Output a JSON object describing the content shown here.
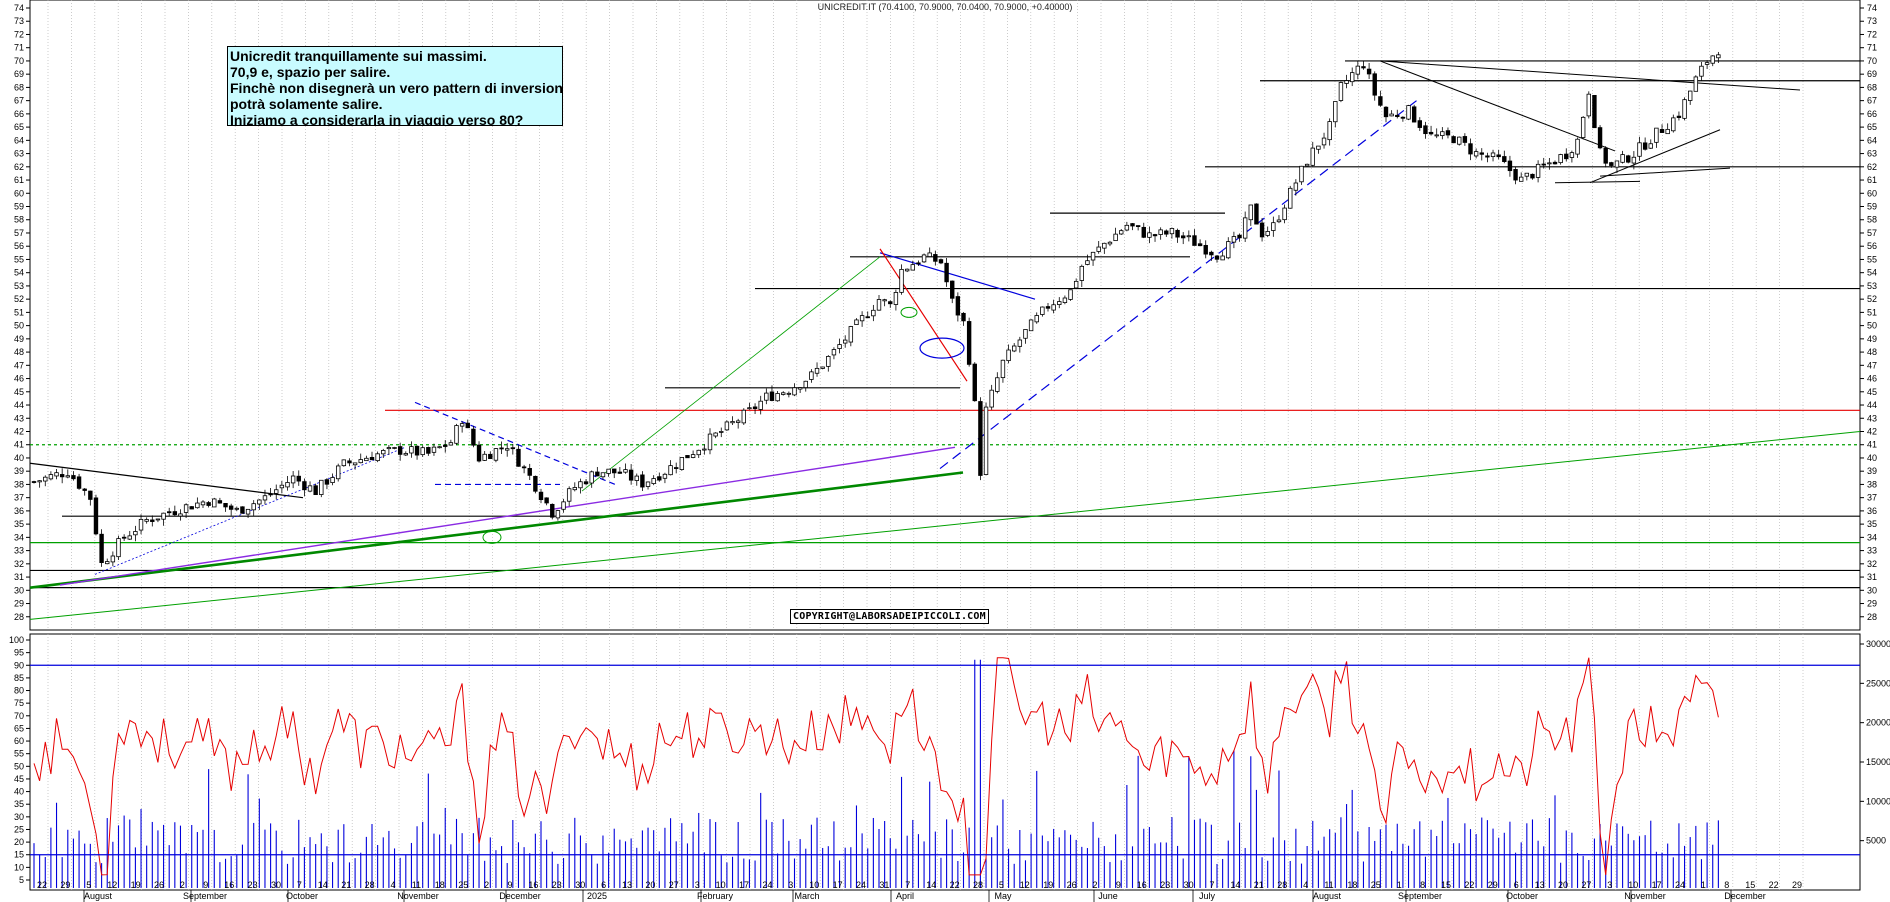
{
  "header": {
    "title": "UNICREDIT.IT (70.4100, 70.9000, 70.0400, 70.9000, +0.40000)"
  },
  "annotation": {
    "lines": [
      "Unicredit tranquillamente sui massimi.",
      "70,9 e, spazio per salire.",
      "Finchè non disegnerà un vero pattern di inversione",
      "potrà solamente salire.",
      "Iniziamo a considerarla in viaggio verso 80?"
    ]
  },
  "copyright": "COPYRIGHT@LABORSADEIPICCOLI.COM",
  "colors": {
    "candle": "#000000",
    "red_line": "#e60000",
    "green_line": "#00a000",
    "dark_green_line": "#008800",
    "blue_dashed": "#0000dd",
    "purple_line": "#8a2be2",
    "rsi_line": "#e60000",
    "volume_bar": "#0000dd",
    "rsi_band": "#0000dd"
  },
  "chart_data": [
    {
      "type": "candlestick",
      "title": "UNICREDIT.IT",
      "ylim": [
        27,
        74
      ],
      "y_ticks": [
        28,
        29,
        30,
        31,
        32,
        33,
        34,
        35,
        36,
        37,
        38,
        39,
        40,
        41,
        42,
        43,
        44,
        45,
        46,
        47,
        48,
        49,
        50,
        51,
        52,
        53,
        54,
        55,
        56,
        57,
        58,
        59,
        60,
        61,
        62,
        63,
        64,
        65,
        66,
        67,
        68,
        69,
        70,
        71,
        72,
        73,
        74
      ],
      "last": {
        "open": 70.41,
        "high": 70.9,
        "low": 70.04,
        "close": 70.9,
        "change": 0.4
      },
      "close_path": [
        [
          0,
          38.2
        ],
        [
          6,
          39.0
        ],
        [
          10,
          37.0
        ],
        [
          12,
          32.0
        ],
        [
          16,
          34.0
        ],
        [
          20,
          35.3
        ],
        [
          26,
          36.2
        ],
        [
          31,
          36.8
        ],
        [
          36,
          36.0
        ],
        [
          41,
          37.0
        ],
        [
          46,
          38.5
        ],
        [
          50,
          37.5
        ],
        [
          55,
          39.5
        ],
        [
          60,
          40.2
        ],
        [
          65,
          40.6
        ],
        [
          70,
          40.3
        ],
        [
          74,
          41.2
        ],
        [
          76,
          43.0
        ],
        [
          79,
          40.0
        ],
        [
          84,
          41.0
        ],
        [
          88,
          38.6
        ],
        [
          92,
          35.9
        ],
        [
          96,
          37.8
        ],
        [
          100,
          39.0
        ],
        [
          104,
          38.9
        ],
        [
          108,
          38.1
        ],
        [
          112,
          39.0
        ],
        [
          116,
          40.2
        ],
        [
          120,
          41.4
        ],
        [
          124,
          42.6
        ],
        [
          127,
          43.5
        ],
        [
          130,
          44.6
        ],
        [
          134,
          45.2
        ],
        [
          138,
          46.2
        ],
        [
          142,
          48.0
        ],
        [
          146,
          50.0
        ],
        [
          150,
          52.0
        ],
        [
          152,
          51.5
        ],
        [
          154,
          54.2
        ],
        [
          158,
          55.2
        ],
        [
          161,
          54.8
        ],
        [
          163,
          51.8
        ],
        [
          165,
          50.2
        ],
        [
          166,
          47.5
        ],
        [
          167,
          44.0
        ],
        [
          168,
          39.0
        ],
        [
          169,
          43.6
        ],
        [
          172,
          47.2
        ],
        [
          176,
          49.5
        ],
        [
          180,
          51.5
        ],
        [
          184,
          52.6
        ],
        [
          186,
          54.5
        ],
        [
          190,
          56.2
        ],
        [
          194,
          57.6
        ],
        [
          198,
          56.8
        ],
        [
          202,
          57.0
        ],
        [
          206,
          56.3
        ],
        [
          210,
          55.4
        ],
        [
          214,
          56.6
        ],
        [
          216,
          58.8
        ],
        [
          218,
          57.0
        ],
        [
          220,
          57.5
        ],
        [
          222,
          59.2
        ],
        [
          226,
          62.5
        ],
        [
          230,
          65.0
        ],
        [
          232,
          68.0
        ],
        [
          234,
          69.0
        ],
        [
          236,
          69.8
        ],
        [
          238,
          67.5
        ],
        [
          240,
          65.8
        ],
        [
          244,
          66.2
        ],
        [
          248,
          64.3
        ],
        [
          252,
          64.2
        ],
        [
          256,
          63.0
        ],
        [
          260,
          62.5
        ],
        [
          264,
          61.0
        ],
        [
          268,
          62.0
        ],
        [
          272,
          63.0
        ],
        [
          274,
          64.0
        ],
        [
          276,
          67.8
        ],
        [
          278,
          63.0
        ],
        [
          280,
          62.0
        ],
        [
          284,
          63.0
        ],
        [
          288,
          64.5
        ],
        [
          292,
          66.0
        ],
        [
          295,
          68.6
        ],
        [
          297,
          70.0
        ],
        [
          299,
          70.9
        ]
      ],
      "horizontal_levels": [
        {
          "y": 70.0,
          "color": "black"
        },
        {
          "y": 68.5,
          "color": "black"
        },
        {
          "y": 62.0,
          "color": "black"
        },
        {
          "y": 58.5,
          "color": "black"
        },
        {
          "y": 55.2,
          "color": "black"
        },
        {
          "y": 52.8,
          "color": "black"
        },
        {
          "y": 45.3,
          "color": "black"
        },
        {
          "y": 43.6,
          "color": "red"
        },
        {
          "y": 41.0,
          "color": "green-dotted"
        },
        {
          "y": 35.6,
          "color": "black"
        },
        {
          "y": 33.6,
          "color": "green"
        },
        {
          "y": 31.5,
          "color": "black"
        },
        {
          "y": 30.2,
          "color": "black"
        }
      ]
    },
    {
      "type": "line_bar",
      "title": "",
      "rsi_ylim": [
        5,
        100
      ],
      "rsi_y_ticks": [
        5,
        10,
        15,
        20,
        25,
        30,
        35,
        40,
        45,
        50,
        55,
        60,
        65,
        70,
        75,
        80,
        85,
        90,
        95,
        100
      ],
      "volume_ticks": [
        5000,
        10000,
        15000,
        20000,
        25000,
        30000
      ],
      "rsi_band_levels": [
        90,
        15
      ],
      "x_date_labels": [
        "22",
        "29",
        "5",
        "12",
        "19",
        "26",
        "2",
        "9",
        "16",
        "23",
        "30",
        "7",
        "14",
        "21",
        "28",
        "4",
        "11",
        "18",
        "25",
        "2",
        "9",
        "16",
        "23",
        "30",
        "6",
        "13",
        "20",
        "27",
        "3",
        "10",
        "17",
        "24",
        "3",
        "10",
        "17",
        "24",
        "31",
        "7",
        "14",
        "22",
        "28",
        "5",
        "12",
        "19",
        "26",
        "2",
        "9",
        "16",
        "23",
        "30",
        "7",
        "14",
        "21",
        "28",
        "4",
        "11",
        "18",
        "25",
        "1",
        "8",
        "15",
        "22",
        "29",
        "6",
        "13",
        "20",
        "27",
        "3",
        "10",
        "17",
        "24",
        "1",
        "8",
        "15",
        "22",
        "29"
      ],
      "x_month_labels": [
        "August",
        "September",
        "October",
        "November",
        "December",
        "2025",
        "February",
        "March",
        "April",
        "May",
        "June",
        "July",
        "August",
        "September",
        "October",
        "November",
        "December"
      ]
    }
  ]
}
